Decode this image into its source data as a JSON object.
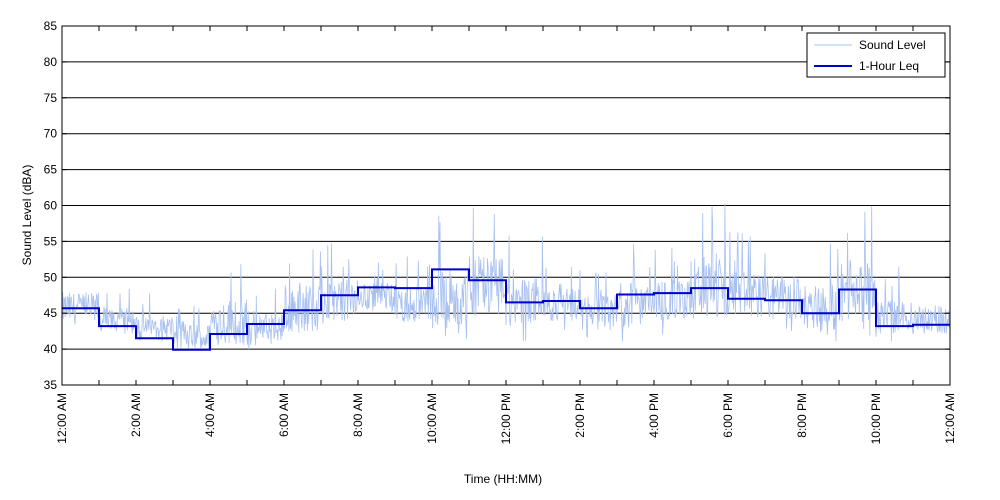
{
  "chart_data": {
    "type": "line",
    "title": "",
    "xlabel": "Time (HH:MM)",
    "ylabel": "Sound Level (dBA)",
    "ylim": [
      35,
      85
    ],
    "yticks": [
      35,
      40,
      45,
      50,
      55,
      60,
      65,
      70,
      75,
      80,
      85
    ],
    "xlim_hours": [
      0,
      24
    ],
    "xtick_labels": [
      "12:00 AM",
      "2:00 AM",
      "4:00 AM",
      "6:00 AM",
      "8:00 AM",
      "10:00 AM",
      "12:00 PM",
      "2:00 PM",
      "4:00 PM",
      "6:00 PM",
      "8:00 PM",
      "10:00 PM",
      "12:00 AM"
    ],
    "grid": "horizontal",
    "legend_position": "top-right",
    "colors": {
      "sound_level": "#a8c0f0",
      "leq": "#0000cc"
    },
    "series": [
      {
        "name": "Sound Level",
        "style": "thin-line",
        "approx_hourly_range": [
          [
            42,
            52
          ],
          [
            41,
            49
          ],
          [
            40,
            48
          ],
          [
            38.5,
            47
          ],
          [
            38.5,
            53
          ],
          [
            39,
            49
          ],
          [
            40,
            56
          ],
          [
            42,
            55
          ],
          [
            44,
            53
          ],
          [
            42,
            54
          ],
          [
            40,
            59
          ],
          [
            42,
            60.5
          ],
          [
            41,
            56
          ],
          [
            42,
            53
          ],
          [
            41,
            52
          ],
          [
            41,
            55
          ],
          [
            42,
            55
          ],
          [
            41,
            61
          ],
          [
            42,
            57
          ],
          [
            42,
            56
          ],
          [
            40.5,
            55
          ],
          [
            41,
            60
          ],
          [
            40.5,
            52
          ],
          [
            40.5,
            50
          ]
        ]
      },
      {
        "name": "1-Hour Leq",
        "style": "step",
        "hour_start": [
          0,
          1,
          2,
          3,
          4,
          5,
          6,
          7,
          8,
          9,
          10,
          11,
          12,
          13,
          14,
          15,
          16,
          17,
          18,
          19,
          20,
          21,
          22,
          23
        ],
        "values": [
          45.7,
          43.2,
          41.5,
          39.9,
          42.1,
          43.5,
          45.4,
          47.5,
          48.6,
          48.5,
          51.1,
          49.6,
          46.5,
          46.7,
          45.7,
          47.6,
          47.8,
          48.5,
          47.0,
          46.8,
          45.0,
          48.3,
          43.2,
          43.4
        ]
      }
    ]
  }
}
